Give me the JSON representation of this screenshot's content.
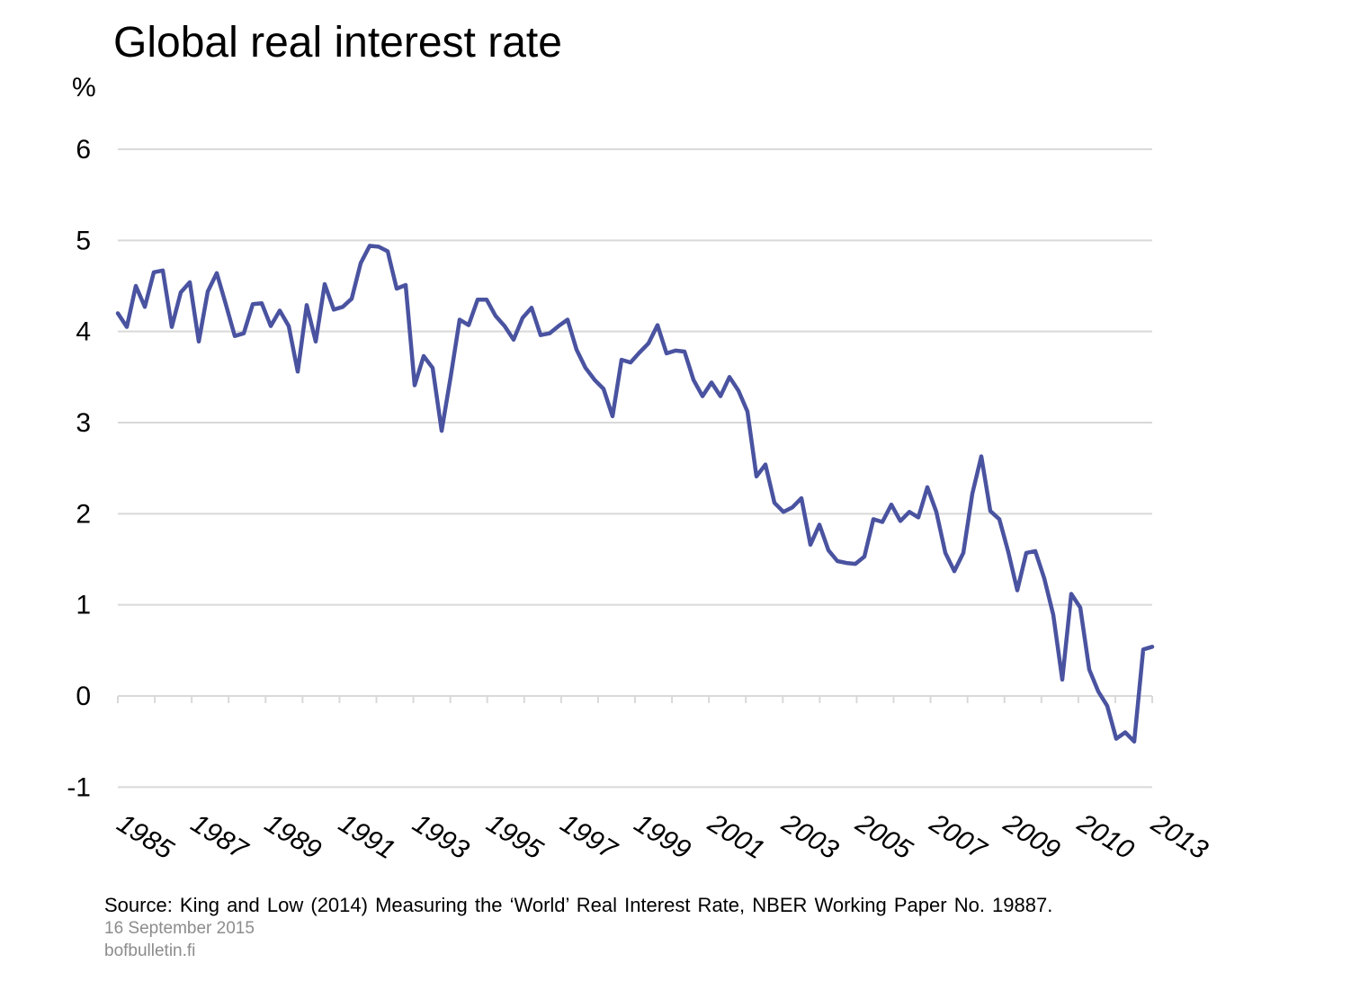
{
  "chart_data": {
    "type": "line",
    "title": "Global real interest rate",
    "ylabel": "%",
    "xlabel": "",
    "ylim": [
      -1,
      6
    ],
    "yticks": [
      -1,
      0,
      1,
      2,
      3,
      4,
      5,
      6
    ],
    "grid": true,
    "legend": "none",
    "x_tick_labels": [
      "1985",
      "1987",
      "1989",
      "1991",
      "1993",
      "1995",
      "1997",
      "1999",
      "2001",
      "2003",
      "2005",
      "2007",
      "2009",
      "2010",
      "2013"
    ],
    "series": [
      {
        "color": "#4a53a0",
        "values": [
          4.2,
          4.05,
          4.5,
          4.27,
          4.65,
          4.67,
          4.05,
          4.43,
          4.54,
          3.89,
          4.44,
          4.64,
          4.3,
          3.95,
          3.98,
          4.3,
          4.31,
          4.06,
          4.23,
          4.06,
          3.56,
          4.29,
          3.89,
          4.52,
          4.24,
          4.27,
          4.36,
          4.75,
          4.94,
          4.93,
          4.88,
          4.47,
          4.51,
          3.41,
          3.73,
          3.6,
          2.91,
          3.5,
          4.13,
          4.07,
          4.35,
          4.35,
          4.17,
          4.06,
          3.91,
          4.15,
          4.26,
          3.96,
          3.98,
          4.06,
          4.13,
          3.8,
          3.6,
          3.47,
          3.37,
          3.07,
          3.69,
          3.66,
          3.77,
          3.87,
          4.07,
          3.76,
          3.79,
          3.78,
          3.47,
          3.29,
          3.44,
          3.29,
          3.5,
          3.35,
          3.12,
          2.41,
          2.54,
          2.12,
          2.02,
          2.07,
          2.17,
          1.66,
          1.88,
          1.6,
          1.48,
          1.46,
          1.45,
          1.53,
          1.94,
          1.91,
          2.1,
          1.92,
          2.02,
          1.96,
          2.29,
          2.02,
          1.57,
          1.37,
          1.57,
          2.22,
          2.63,
          2.03,
          1.94,
          1.58,
          1.16,
          1.57,
          1.59,
          1.29,
          0.89,
          0.18,
          1.12,
          0.97,
          0.29,
          0.05,
          -0.11,
          -0.47,
          -0.4,
          -0.5,
          0.51,
          0.54
        ]
      }
    ]
  },
  "footer": {
    "source": "Source: King and Low (2014) Measuring the ‘World’ Real Interest Rate, NBER Working Paper No. 19887.",
    "date": "16 September 2015",
    "site": "bofbulletin.fi"
  }
}
